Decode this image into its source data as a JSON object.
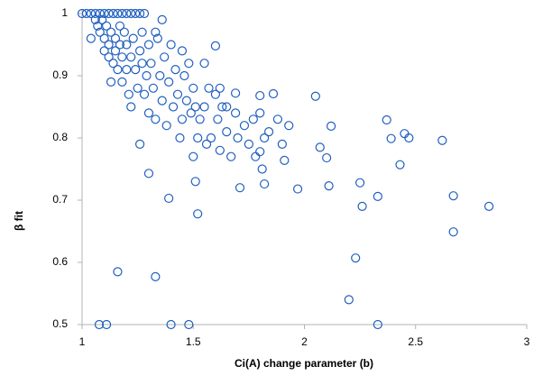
{
  "chart_data": {
    "type": "scatter",
    "x_label": "Ci(A) change parameter (b)",
    "y_label": "β fit",
    "color": "#1f5fbf",
    "xlim": [
      1,
      3
    ],
    "xticks": [
      1,
      1.5,
      2,
      2.5,
      3
    ],
    "ylim": [
      0.5,
      1
    ],
    "yticks": [
      0.5,
      0.6,
      0.7,
      0.8,
      0.9,
      1
    ],
    "x": [
      1.0,
      1.02,
      1.04,
      1.06,
      1.08,
      1.1,
      1.12,
      1.14,
      1.16,
      1.18,
      1.2,
      1.22,
      1.24,
      1.26,
      1.28,
      1.04,
      1.06,
      1.07,
      1.08,
      1.09,
      1.1,
      1.1,
      1.11,
      1.12,
      1.12,
      1.13,
      1.13,
      1.14,
      1.15,
      1.15,
      1.16,
      1.17,
      1.17,
      1.18,
      1.18,
      1.19,
      1.2,
      1.2,
      1.21,
      1.22,
      1.22,
      1.23,
      1.24,
      1.25,
      1.26,
      1.27,
      1.28,
      1.29,
      1.3,
      1.3,
      1.31,
      1.32,
      1.33,
      1.34,
      1.35,
      1.36,
      1.37,
      1.38,
      1.39,
      1.4,
      1.41,
      1.42,
      1.43,
      1.44,
      1.45,
      1.46,
      1.47,
      1.48,
      1.49,
      1.5,
      1.5,
      1.51,
      1.52,
      1.53,
      1.55,
      1.56,
      1.57,
      1.58,
      1.6,
      1.61,
      1.62,
      1.63,
      1.65,
      1.67,
      1.69,
      1.7,
      1.73,
      1.75,
      1.77,
      1.78,
      1.8,
      1.82,
      1.84,
      1.88,
      1.9,
      1.93,
      1.62,
      1.65,
      1.55,
      1.45,
      1.33,
      1.27,
      1.077,
      1.11,
      1.4,
      1.48,
      2.33,
      1.16,
      1.33,
      2.2,
      2.23,
      2.67,
      2.83,
      2.67,
      2.33,
      2.26,
      2.25,
      1.52,
      1.39,
      1.51,
      1.71,
      1.82,
      1.97,
      2.11,
      1.3,
      1.26,
      2.43,
      2.62,
      2.39,
      2.47,
      2.37,
      2.45,
      2.05,
      2.12,
      2.07,
      2.1,
      1.91,
      1.81,
      1.8,
      1.86,
      1.8,
      1.69,
      1.6,
      1.36
    ],
    "values": [
      1,
      1,
      1,
      1,
      1,
      1,
      1,
      1,
      1,
      1,
      1,
      1,
      1,
      1,
      1,
      0.96,
      0.99,
      0.98,
      0.97,
      0.99,
      0.96,
      0.94,
      0.98,
      0.95,
      0.93,
      0.97,
      0.89,
      0.92,
      0.96,
      0.94,
      0.91,
      0.98,
      0.95,
      0.93,
      0.89,
      0.97,
      0.91,
      0.95,
      0.87,
      0.93,
      0.85,
      0.96,
      0.91,
      0.88,
      0.94,
      0.92,
      0.87,
      0.9,
      0.95,
      0.84,
      0.92,
      0.88,
      0.83,
      0.96,
      0.9,
      0.86,
      0.93,
      0.82,
      0.89,
      0.95,
      0.85,
      0.91,
      0.87,
      0.8,
      0.83,
      0.9,
      0.86,
      0.92,
      0.84,
      0.88,
      0.77,
      0.85,
      0.8,
      0.83,
      0.85,
      0.79,
      0.88,
      0.8,
      0.87,
      0.83,
      0.78,
      0.85,
      0.81,
      0.77,
      0.84,
      0.8,
      0.82,
      0.79,
      0.83,
      0.77,
      0.84,
      0.8,
      0.81,
      0.83,
      0.79,
      0.82,
      0.88,
      0.85,
      0.92,
      0.94,
      0.97,
      0.97,
      0.5,
      0.5,
      0.5,
      0.5,
      0.5,
      0.585,
      0.577,
      0.54,
      0.607,
      0.649,
      0.69,
      0.707,
      0.706,
      0.69,
      0.728,
      0.678,
      0.703,
      0.73,
      0.72,
      0.726,
      0.718,
      0.723,
      0.743,
      0.79,
      0.757,
      0.796,
      0.799,
      0.8,
      0.829,
      0.807,
      0.867,
      0.819,
      0.785,
      0.768,
      0.764,
      0.75,
      0.778,
      0.871,
      0.868,
      0.872,
      0.948,
      0.99
    ]
  }
}
